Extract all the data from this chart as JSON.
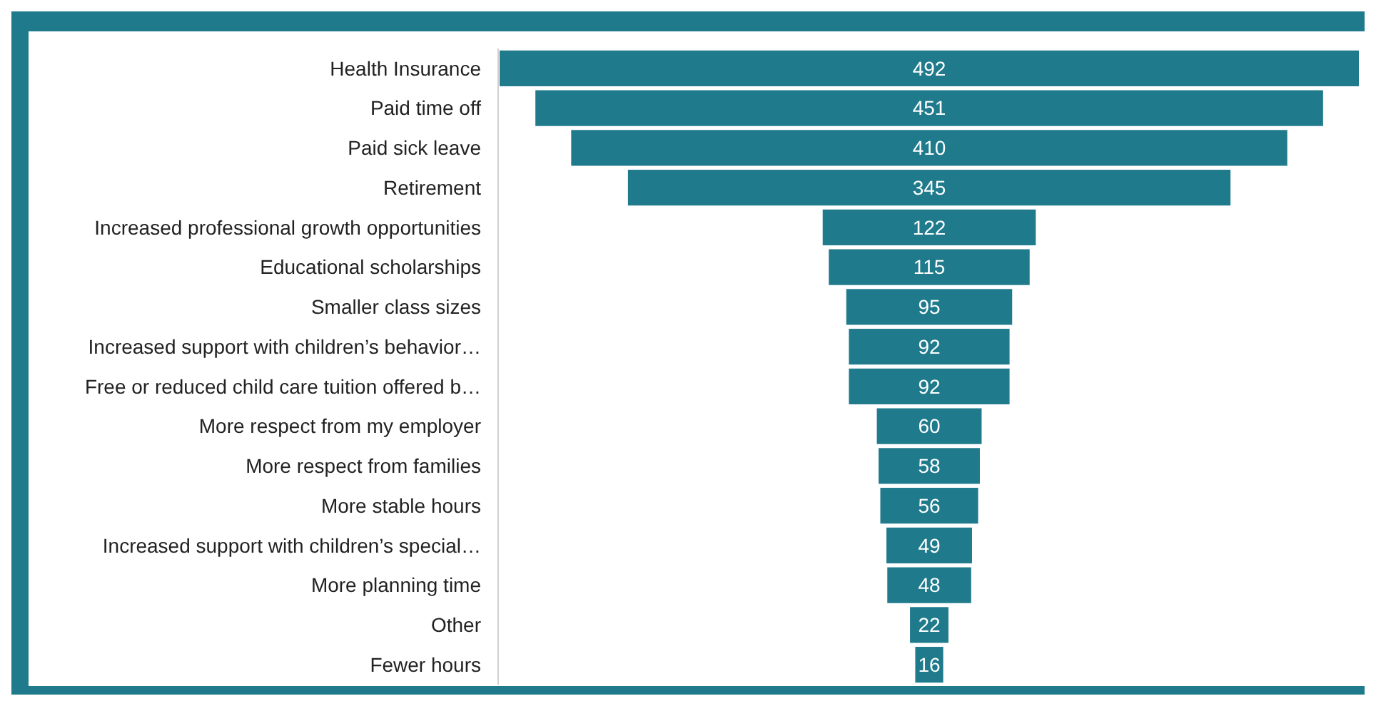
{
  "chart_data": {
    "type": "other",
    "categories": [
      "Health Insurance",
      "Paid time off",
      "Paid sick leave",
      "Retirement",
      "Increased professional growth opportunities",
      "Educational scholarships",
      "Smaller class sizes",
      "Increased support with children’s behavior…",
      "Free or reduced child care tuition offered b…",
      "More respect from my employer",
      "More respect from families",
      "More stable hours",
      "Increased support with children’s special…",
      "More planning time",
      "Other",
      "Fewer hours"
    ],
    "values": [
      492,
      451,
      410,
      345,
      122,
      115,
      95,
      92,
      92,
      60,
      58,
      56,
      49,
      48,
      22,
      16
    ],
    "color": "#1f7a8c",
    "data_labels": true
  }
}
